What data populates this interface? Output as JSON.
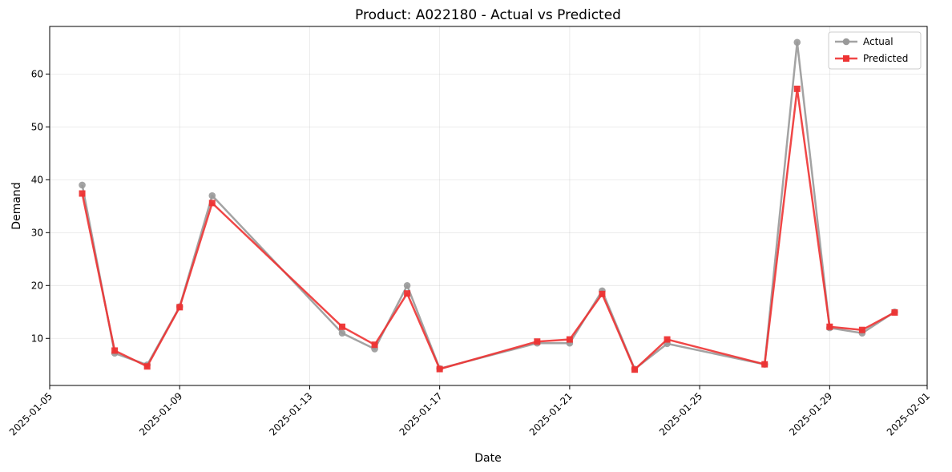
{
  "chart_data": {
    "type": "line",
    "title": "Product: A022180 - Actual vs Predicted",
    "xlabel": "Date",
    "ylabel": "Demand",
    "x": [
      "2025-01-06",
      "2025-01-07",
      "2025-01-08",
      "2025-01-09",
      "2025-01-10",
      "2025-01-14",
      "2025-01-15",
      "2025-01-16",
      "2025-01-17",
      "2025-01-20",
      "2025-01-21",
      "2025-01-22",
      "2025-01-23",
      "2025-01-24",
      "2025-01-27",
      "2025-01-28",
      "2025-01-29",
      "2025-01-30",
      "2025-01-31"
    ],
    "series": [
      {
        "name": "Actual",
        "color": "#999999",
        "marker": "circle",
        "values": [
          39,
          7.2,
          5,
          16,
          37,
          11,
          8,
          20,
          4.3,
          9.1,
          9.1,
          19,
          4.2,
          9,
          5.1,
          66,
          12,
          11,
          15
        ]
      },
      {
        "name": "Predicted",
        "color": "#ee3333",
        "marker": "square",
        "values": [
          37.4,
          7.7,
          4.7,
          15.9,
          35.6,
          12.2,
          8.8,
          18.5,
          4.2,
          9.4,
          9.8,
          18.4,
          4.1,
          9.8,
          5.1,
          57.2,
          12.2,
          11.6,
          14.9
        ]
      }
    ],
    "x_ticks": [
      "2025-01-05",
      "2025-01-09",
      "2025-01-13",
      "2025-01-17",
      "2025-01-21",
      "2025-01-25",
      "2025-01-29",
      "2025-02-01"
    ],
    "xlim": [
      "2025-01-05",
      "2025-02-01"
    ],
    "y_ticks": [
      10,
      20,
      30,
      40,
      50,
      60
    ],
    "ylim": [
      1.1,
      69.0
    ],
    "grid": true,
    "legend_position": "top-right"
  }
}
